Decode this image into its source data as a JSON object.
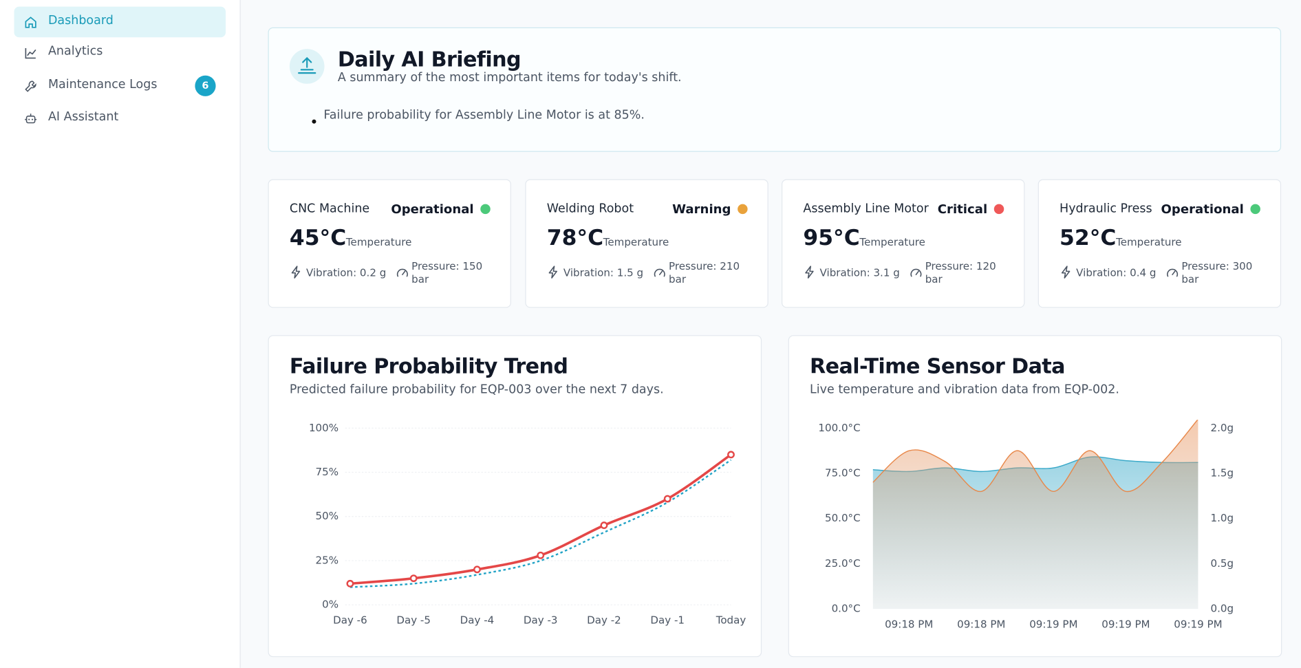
{
  "sidebar": {
    "nav": [
      {
        "label": "Dashboard"
      },
      {
        "label": "Analytics"
      },
      {
        "label": "Maintenance Logs",
        "badge": 6
      },
      {
        "label": "AI Assistant"
      }
    ]
  },
  "briefing": {
    "title": "Daily AI Briefing",
    "subtitle": "A summary of the most important items for today's shift.",
    "items": [
      "Failure probability for Assembly Line Motor is at 85%."
    ]
  },
  "equipment": [
    {
      "name": "CNC Machine",
      "status": "Operational",
      "color": "#4cc97a",
      "temperature": "45°C",
      "temperature_label": "Temperature",
      "vibration": "Vibration: 0.2 g",
      "pressure": "Pressure: 150 bar"
    },
    {
      "name": "Welding Robot",
      "status": "Warning",
      "color": "#e9a23b",
      "temperature": "78°C",
      "temperature_label": "Temperature",
      "vibration": "Vibration: 1.5 g",
      "pressure": "Pressure: 210 bar"
    },
    {
      "name": "Assembly Line Motor",
      "status": "Critical",
      "color": "#ef5858",
      "temperature": "95°C",
      "temperature_label": "Temperature",
      "vibration": "Vibration: 3.1 g",
      "pressure": "Pressure: 120 bar"
    },
    {
      "name": "Hydraulic Press",
      "status": "Operational",
      "color": "#4cc97a",
      "temperature": "52°C",
      "temperature_label": "Temperature",
      "vibration": "Vibration: 0.4 g",
      "pressure": "Pressure: 300 bar"
    }
  ],
  "chart_data": [
    {
      "type": "line",
      "title": "Failure Probability Trend",
      "subtitle": "Predicted failure probability for EQP-003 over the next 7 days.",
      "categories": [
        "Day -6",
        "Day -5",
        "Day -4",
        "Day -3",
        "Day -2",
        "Day -1",
        "Today"
      ],
      "series": [
        {
          "color": "#e44747",
          "markers": true,
          "values": [
            12,
            15,
            20,
            28,
            45,
            60,
            85
          ]
        },
        {
          "color": "#22a3c6",
          "dash": "dotted",
          "values": [
            10,
            12,
            17,
            25,
            41,
            58,
            82
          ]
        }
      ],
      "ylim": [
        0,
        100
      ],
      "yticks": [
        {
          "value": 0,
          "label": "0%"
        },
        {
          "value": 25,
          "label": "25%"
        },
        {
          "value": 50,
          "label": "50%"
        },
        {
          "value": 75,
          "label": "75%"
        },
        {
          "value": 100,
          "label": "100%"
        }
      ],
      "grid": true
    },
    {
      "type": "area",
      "title": "Real-Time Sensor Data",
      "subtitle": "Live temperature and vibration data from EQP-002.",
      "categories": [
        null,
        "09:18 PM",
        null,
        "09:18 PM",
        null,
        "09:19 PM",
        null,
        "09:19 PM",
        null,
        "09:19 PM"
      ],
      "series": [
        {
          "color": "#3aa9c9",
          "values": [
            77,
            76,
            78,
            76,
            78,
            78,
            84,
            82,
            81,
            81
          ]
        },
        {
          "color": "#e8884a",
          "axis": "y2",
          "values": [
            1.4,
            1.75,
            1.63,
            1.3,
            1.75,
            1.3,
            1.75,
            1.3,
            1.62,
            2.1
          ]
        }
      ],
      "ylim": [
        0,
        100
      ],
      "yticks": [
        {
          "value": 0,
          "label": "0.0°C"
        },
        {
          "value": 25,
          "label": "25.0°C"
        },
        {
          "value": 50,
          "label": "50.0°C"
        },
        {
          "value": 75,
          "label": "75.0°C"
        },
        {
          "value": 100,
          "label": "100.0°C"
        }
      ],
      "y2lim": [
        0,
        2
      ],
      "y2ticks": [
        {
          "value": 0,
          "label": "0.0g"
        },
        {
          "value": 0.5,
          "label": "0.5g"
        },
        {
          "value": 1,
          "label": "1.0g"
        },
        {
          "value": 1.5,
          "label": "1.5g"
        },
        {
          "value": 2,
          "label": "2.0g"
        }
      ]
    }
  ]
}
